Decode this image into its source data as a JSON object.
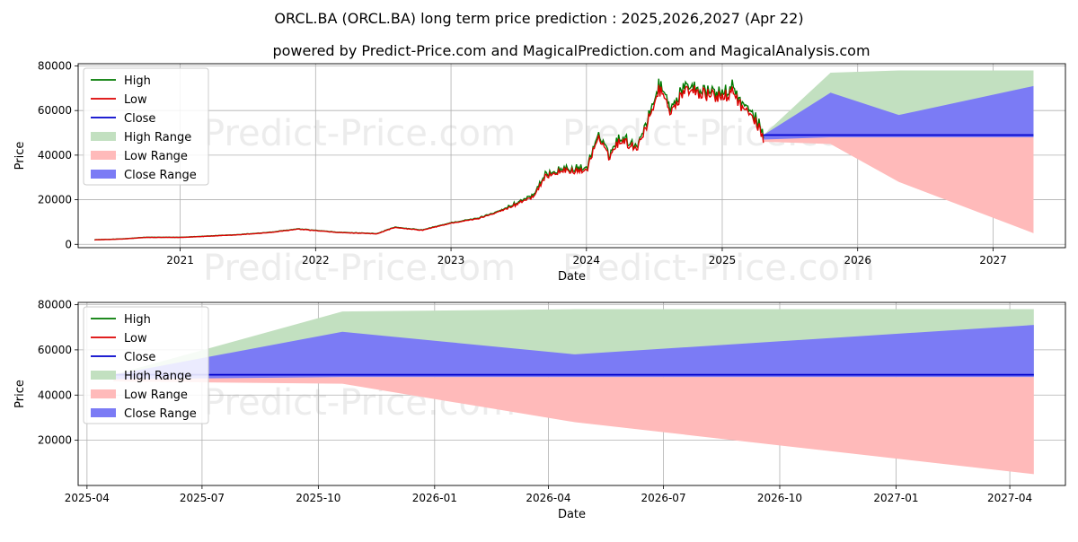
{
  "title": "ORCL.BA (ORCL.BA) long term price prediction : 2025,2026,2027 (Apr 22)",
  "subtitle": "powered by Predict-Price.com and MagicalPrediction.com and MagicalAnalysis.com",
  "watermark": "Predict-Price.com",
  "colors": {
    "high": "#007a00",
    "low": "#dd0000",
    "close": "#0000cc",
    "high_range": "#c2e0c0",
    "low_range": "#ffbaba",
    "close_range": "#7b7bf5",
    "grid": "#b0b0b0",
    "watermark": "#ececec"
  },
  "legend": [
    "High",
    "Low",
    "Close",
    "High Range",
    "Low Range",
    "Close Range"
  ],
  "chart_data": [
    {
      "type": "line",
      "xlabel": "Date",
      "ylabel": "Price",
      "xlim": [
        "2020-04-01",
        "2027-07-15"
      ],
      "ylim": [
        -1500,
        81000
      ],
      "x_ticks": [
        "2021",
        "2022",
        "2023",
        "2024",
        "2025",
        "2026",
        "2027"
      ],
      "y_ticks": [
        "0",
        "20000",
        "40000",
        "60000",
        "80000"
      ],
      "legend_position": "upper-left",
      "grid": true,
      "history_anchors": [
        [
          "2020-05-15",
          2000
        ],
        [
          "2020-08-01",
          2400
        ],
        [
          "2020-10-01",
          3100
        ],
        [
          "2021-01-01",
          3100
        ],
        [
          "2021-06-01",
          4200
        ],
        [
          "2021-09-01",
          5300
        ],
        [
          "2021-11-15",
          6800
        ],
        [
          "2022-03-01",
          5300
        ],
        [
          "2022-06-15",
          4700
        ],
        [
          "2022-08-01",
          7500
        ],
        [
          "2022-10-15",
          6300
        ],
        [
          "2023-01-01",
          9500
        ],
        [
          "2023-03-15",
          11500
        ],
        [
          "2023-06-01",
          16000
        ],
        [
          "2023-08-15",
          22000
        ],
        [
          "2023-09-15",
          31000
        ],
        [
          "2023-11-01",
          33000
        ],
        [
          "2024-01-01",
          33000
        ],
        [
          "2024-02-01",
          48000
        ],
        [
          "2024-03-01",
          39000
        ],
        [
          "2024-04-01",
          47000
        ],
        [
          "2024-05-15",
          43000
        ],
        [
          "2024-06-15",
          55000
        ],
        [
          "2024-07-15",
          70000
        ],
        [
          "2024-08-15",
          60000
        ],
        [
          "2024-10-01",
          70000
        ],
        [
          "2024-11-15",
          67000
        ],
        [
          "2025-01-01",
          66000
        ],
        [
          "2025-02-01",
          68000
        ],
        [
          "2025-03-01",
          60000
        ],
        [
          "2025-04-01",
          55000
        ],
        [
          "2025-04-22",
          48000
        ]
      ],
      "forecast": {
        "x": [
          "2025-04-22",
          "2025-10-20",
          "2026-04-22",
          "2027-04-20"
        ],
        "high_range": {
          "upper": [
            49000,
            77000,
            78000,
            78000
          ],
          "lower": [
            48000,
            48000,
            48000,
            48000
          ]
        },
        "low_range": {
          "upper": [
            48000,
            48000,
            48000,
            48000
          ],
          "lower": [
            46000,
            45000,
            28000,
            5000
          ]
        },
        "close_range": {
          "upper": [
            49000,
            68000,
            58000,
            71000
          ],
          "lower": [
            47000,
            48000,
            48000,
            48000
          ]
        },
        "close": [
          49000,
          49000,
          49000,
          49000
        ]
      }
    },
    {
      "type": "line",
      "xlabel": "Date",
      "ylabel": "Price",
      "xlim": [
        "2025-03-25",
        "2027-05-15"
      ],
      "ylim": [
        0,
        81000
      ],
      "x_ticks": [
        "2025-04",
        "2025-07",
        "2025-10",
        "2026-01",
        "2026-04",
        "2026-07",
        "2026-10",
        "2027-01",
        "2027-04"
      ],
      "y_ticks": [
        "20000",
        "40000",
        "60000",
        "80000"
      ],
      "legend_position": "upper-left",
      "grid": true
    }
  ]
}
